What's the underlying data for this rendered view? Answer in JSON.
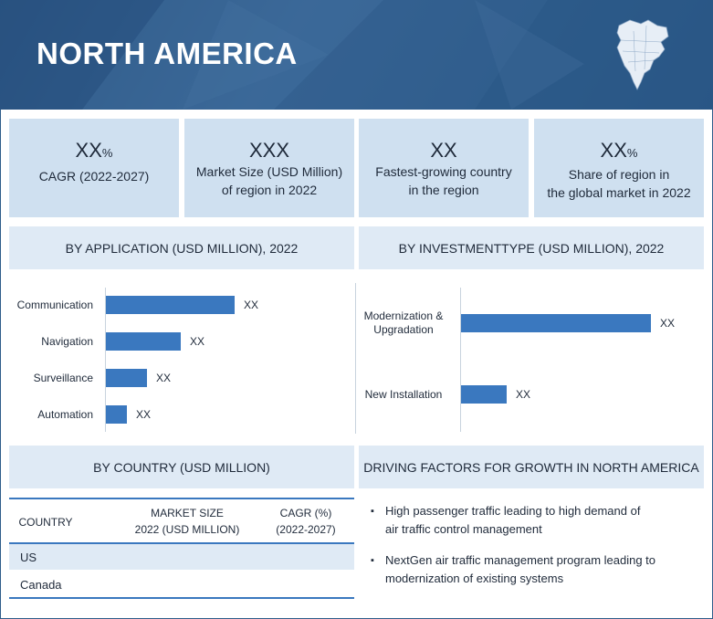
{
  "header": {
    "title": "NORTH AMERICA"
  },
  "kpis": [
    {
      "value": "XX",
      "unit": "%",
      "label_lines": [
        "CAGR (2022-2027)"
      ]
    },
    {
      "value": "XXX",
      "unit": "",
      "label_lines": [
        "Market Size (USD Million)",
        "of region in 2022"
      ]
    },
    {
      "value": "XX",
      "unit": "",
      "label_lines": [
        "Fastest-growing country",
        "in the region"
      ]
    },
    {
      "value": "XX",
      "unit": "%",
      "label_lines": [
        "Share of region in",
        "the global market in 2022"
      ]
    }
  ],
  "sections": {
    "application": "BY APPLICATION (USD MILLION), 2022",
    "investment": "BY INVESTMENTTYPE (USD MILLION), 2022",
    "country": "BY COUNTRY (USD MILLION)",
    "factors": "DRIVING FACTORS FOR GROWTH IN NORTH AMERICA"
  },
  "chart_data": [
    {
      "type": "bar",
      "orientation": "horizontal",
      "title": "BY APPLICATION (USD MILLION), 2022",
      "categories": [
        "Communication",
        "Navigation",
        "Surveillance",
        "Automation"
      ],
      "values": [
        100,
        58,
        32,
        16
      ],
      "data_labels": [
        "XX",
        "XX",
        "XX",
        "XX"
      ],
      "xlim": [
        0,
        100
      ],
      "grid": false,
      "legend": "none",
      "color": "#3a78bf"
    },
    {
      "type": "bar",
      "orientation": "horizontal",
      "title": "BY INVESTMENTTYPE (USD MILLION), 2022",
      "categories": [
        "Modernization & Upgradation",
        "New Installation"
      ],
      "category_lines": [
        [
          "Modernization &",
          "Upgradation"
        ],
        [
          "New Installation"
        ]
      ],
      "values": [
        100,
        24
      ],
      "data_labels": [
        "XX",
        "XX"
      ],
      "xlim": [
        0,
        100
      ],
      "grid": false,
      "legend": "none",
      "color": "#3a78bf"
    }
  ],
  "country_table": {
    "headers": [
      [
        "COUNTRY"
      ],
      [
        "MARKET SIZE",
        "2022 (USD MILLION)"
      ],
      [
        "CAGR (%)",
        "(2022-2027)"
      ]
    ],
    "rows": [
      {
        "country": "US",
        "market_size": "",
        "cagr": ""
      },
      {
        "country": "Canada",
        "market_size": "",
        "cagr": ""
      }
    ]
  },
  "factors": [
    [
      "High passenger traffic leading to high demand of",
      "air traffic control management"
    ],
    [
      "NextGen air traffic management program leading to",
      "modernization of existing systems"
    ]
  ],
  "colors": {
    "header": "#31608f",
    "kpi_bg": "#cfe0f0",
    "section_bg": "#dfeaf5",
    "bar": "#3a78bf",
    "accent": "#3a78bf"
  },
  "icons": {
    "map": "north-america-map-icon",
    "bullet": "bullet-icon"
  }
}
